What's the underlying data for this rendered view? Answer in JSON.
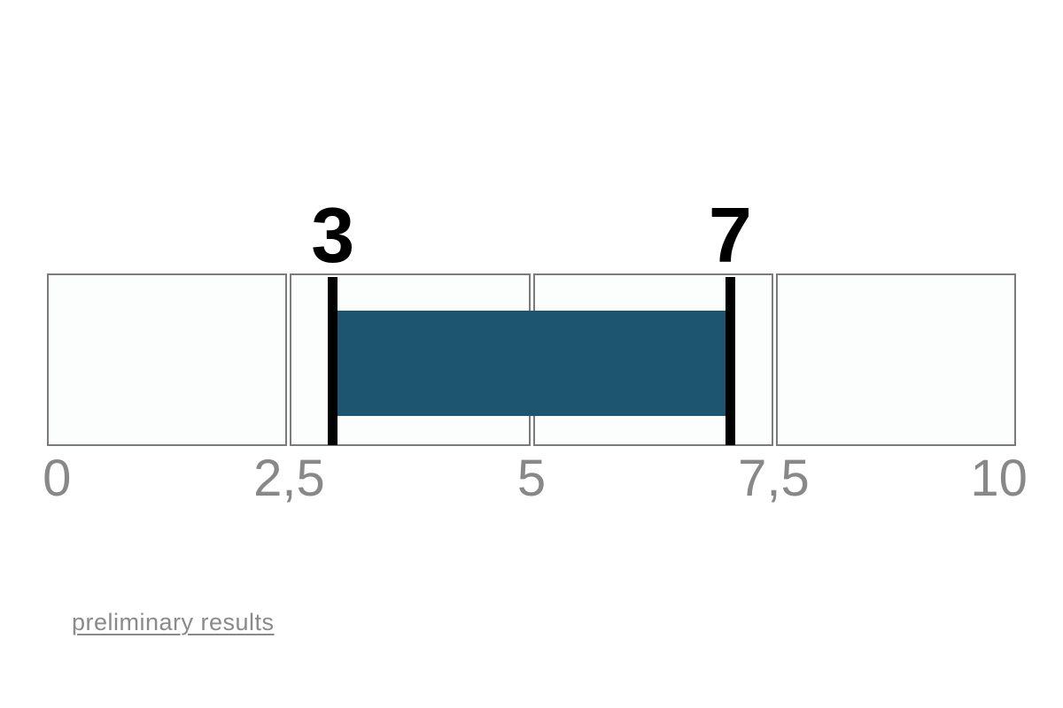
{
  "page": {
    "background": "#ffffff"
  },
  "chart_data": {
    "type": "bar",
    "subtype": "horizontal-range-gauge",
    "title": "",
    "xlabel": "",
    "ylabel": "",
    "axis": {
      "min": 0,
      "max": 10,
      "tick_values": [
        0,
        2.5,
        5,
        7.5,
        10
      ],
      "tick_labels": [
        "0",
        "2,5",
        "5",
        "7,5",
        "10"
      ],
      "decimal_separator": ","
    },
    "segments": 4,
    "range": {
      "start": 3,
      "end": 7,
      "start_label": "3",
      "end_label": "7"
    },
    "grid": false,
    "legend": false,
    "colors": {
      "bar": "#1d5570",
      "marker": "#000000",
      "cell_background": "#fbfefd",
      "cell_border": "#7b7b7b",
      "tick_text": "#888888",
      "range_label_text": "#000000"
    }
  },
  "footer": {
    "link_label": "preliminary results",
    "link_color": "#8a8a8a"
  }
}
